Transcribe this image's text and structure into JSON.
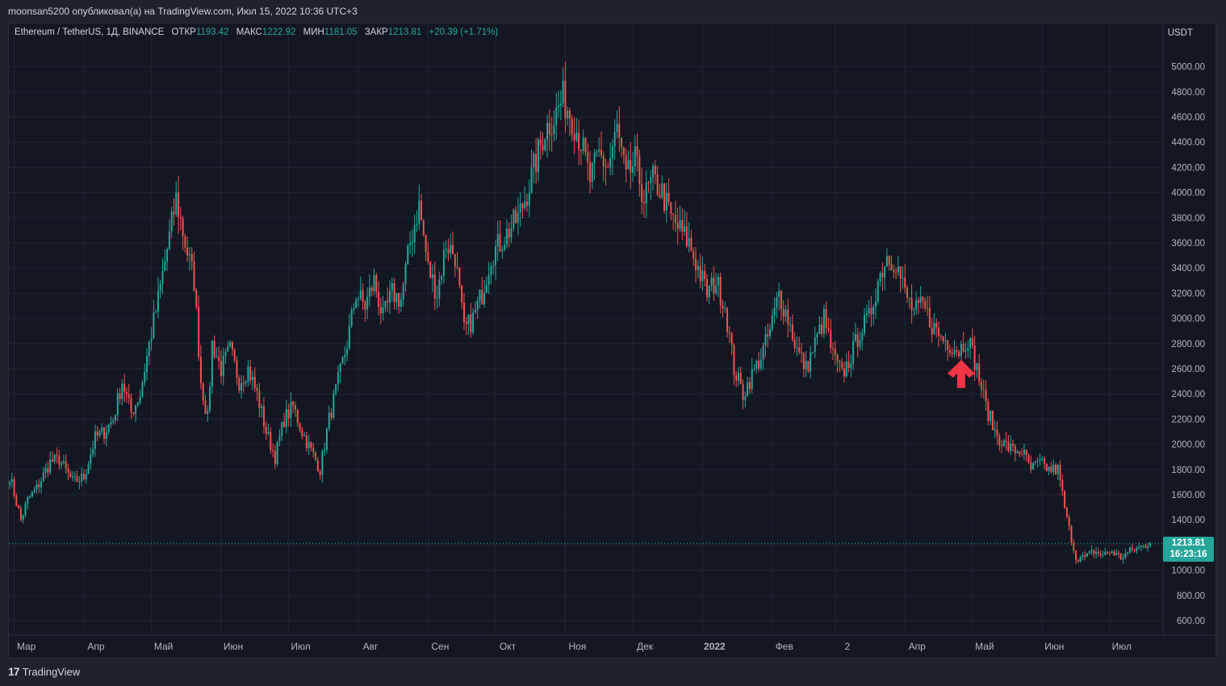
{
  "header": {
    "publisher_line": "moonsan5200 опубликовал(а) на TradingView.com, Июл 15, 2022 10:36 UTC+3"
  },
  "legend": {
    "symbol": "Ethereum / TetherUS, 1Д, BINANCE",
    "open_label": "ОТКР",
    "open_value": "1193.42",
    "high_label": "МАКС",
    "high_value": "1222.92",
    "low_label": "МИН",
    "low_value": "1181.05",
    "close_label": "ЗАКР",
    "close_value": "1213.81",
    "change": "+20.39 (+1.71%)"
  },
  "price_tag": {
    "price": "1213.81",
    "countdown": "16:23:16"
  },
  "footer": {
    "brand_mark": "17",
    "brand": "TradingView"
  },
  "colors": {
    "background": "#131722",
    "grid": "#1f2430",
    "up": "#26a69a",
    "down": "#ef5350",
    "arrow": "#f23645"
  },
  "chart_data": {
    "type": "candlestick",
    "currency_label": "USDT",
    "ylim": [
      500,
      5200
    ],
    "y_ticks": [
      "600.00",
      "800.00",
      "1000.00",
      "1200.00",
      "1400.00",
      "1600.00",
      "1800.00",
      "2000.00",
      "2200.00",
      "2400.00",
      "2600.00",
      "2800.00",
      "3000.00",
      "3200.00",
      "3400.00",
      "3600.00",
      "3800.00",
      "4000.00",
      "4200.00",
      "4400.00",
      "4600.00",
      "4800.00",
      "5000.00"
    ],
    "x_ticks": [
      {
        "label": "Мар",
        "day": 2
      },
      {
        "label": "Апр",
        "day": 33
      },
      {
        "label": "Май",
        "day": 63
      },
      {
        "label": "Июн",
        "day": 94
      },
      {
        "label": "Июл",
        "day": 124
      },
      {
        "label": "Авг",
        "day": 155
      },
      {
        "label": "Сен",
        "day": 186
      },
      {
        "label": "Окт",
        "day": 216
      },
      {
        "label": "Ноя",
        "day": 247
      },
      {
        "label": "Дек",
        "day": 277
      },
      {
        "label": "2022",
        "day": 308
      },
      {
        "label": "Фев",
        "day": 339
      },
      {
        "label": "2",
        "day": 367
      },
      {
        "label": "Апр",
        "day": 398
      },
      {
        "label": "Май",
        "day": 428
      },
      {
        "label": "Июн",
        "day": 459
      },
      {
        "label": "Июл",
        "day": 489
      }
    ],
    "total_days": 507,
    "last_close": 1213.81,
    "anchors": [
      [
        0,
        1750
      ],
      [
        5,
        1400
      ],
      [
        8,
        1560
      ],
      [
        12,
        1650
      ],
      [
        18,
        1860
      ],
      [
        22,
        1880
      ],
      [
        28,
        1700
      ],
      [
        33,
        1740
      ],
      [
        38,
        2050
      ],
      [
        42,
        2100
      ],
      [
        46,
        2200
      ],
      [
        50,
        2500
      ],
      [
        54,
        2250
      ],
      [
        58,
        2400
      ],
      [
        62,
        2800
      ],
      [
        66,
        3150
      ],
      [
        70,
        3550
      ],
      [
        74,
        3950
      ],
      [
        78,
        3600
      ],
      [
        82,
        3300
      ],
      [
        85,
        2500
      ],
      [
        88,
        2200
      ],
      [
        90,
        2800
      ],
      [
        94,
        2600
      ],
      [
        98,
        2750
      ],
      [
        102,
        2500
      ],
      [
        106,
        2600
      ],
      [
        110,
        2400
      ],
      [
        114,
        2100
      ],
      [
        118,
        1900
      ],
      [
        122,
        2200
      ],
      [
        126,
        2300
      ],
      [
        130,
        2100
      ],
      [
        134,
        1950
      ],
      [
        138,
        1800
      ],
      [
        142,
        2200
      ],
      [
        146,
        2500
      ],
      [
        150,
        2800
      ],
      [
        154,
        3200
      ],
      [
        158,
        3100
      ],
      [
        162,
        3300
      ],
      [
        166,
        3000
      ],
      [
        170,
        3200
      ],
      [
        174,
        3150
      ],
      [
        178,
        3600
      ],
      [
        182,
        3900
      ],
      [
        186,
        3400
      ],
      [
        190,
        3200
      ],
      [
        194,
        3600
      ],
      [
        198,
        3500
      ],
      [
        202,
        2900
      ],
      [
        206,
        3000
      ],
      [
        210,
        3200
      ],
      [
        214,
        3500
      ],
      [
        218,
        3600
      ],
      [
        222,
        3700
      ],
      [
        226,
        3800
      ],
      [
        230,
        4000
      ],
      [
        234,
        4250
      ],
      [
        238,
        4500
      ],
      [
        242,
        4600
      ],
      [
        246,
        4750
      ],
      [
        250,
        4600
      ],
      [
        254,
        4400
      ],
      [
        258,
        4100
      ],
      [
        262,
        4300
      ],
      [
        266,
        4200
      ],
      [
        270,
        4500
      ],
      [
        274,
        4100
      ],
      [
        278,
        4250
      ],
      [
        282,
        3950
      ],
      [
        286,
        4100
      ],
      [
        290,
        4000
      ],
      [
        294,
        3800
      ],
      [
        298,
        3700
      ],
      [
        302,
        3600
      ],
      [
        306,
        3400
      ],
      [
        310,
        3200
      ],
      [
        314,
        3300
      ],
      [
        318,
        3100
      ],
      [
        322,
        2600
      ],
      [
        326,
        2400
      ],
      [
        330,
        2550
      ],
      [
        334,
        2700
      ],
      [
        338,
        2900
      ],
      [
        342,
        3200
      ],
      [
        346,
        3000
      ],
      [
        350,
        2750
      ],
      [
        354,
        2600
      ],
      [
        358,
        2800
      ],
      [
        362,
        3000
      ],
      [
        366,
        2700
      ],
      [
        370,
        2550
      ],
      [
        374,
        2700
      ],
      [
        378,
        2900
      ],
      [
        382,
        3000
      ],
      [
        386,
        3300
      ],
      [
        390,
        3500
      ],
      [
        394,
        3450
      ],
      [
        398,
        3200
      ],
      [
        402,
        3050
      ],
      [
        406,
        3100
      ],
      [
        410,
        2950
      ],
      [
        414,
        2850
      ],
      [
        418,
        2800
      ],
      [
        422,
        2750
      ],
      [
        426,
        2850
      ],
      [
        430,
        2600
      ],
      [
        434,
        2300
      ],
      [
        438,
        2100
      ],
      [
        442,
        2000
      ],
      [
        446,
        1950
      ],
      [
        450,
        1950
      ],
      [
        454,
        1800
      ],
      [
        458,
        1850
      ],
      [
        462,
        1800
      ],
      [
        466,
        1800
      ],
      [
        470,
        1400
      ],
      [
        474,
        1100
      ],
      [
        478,
        1100
      ],
      [
        482,
        1150
      ],
      [
        486,
        1120
      ],
      [
        490,
        1150
      ],
      [
        494,
        1100
      ],
      [
        498,
        1150
      ],
      [
        502,
        1180
      ],
      [
        507,
        1213.81
      ]
    ],
    "annotation": {
      "type": "arrow-up",
      "day": 423,
      "price": 2620
    }
  }
}
